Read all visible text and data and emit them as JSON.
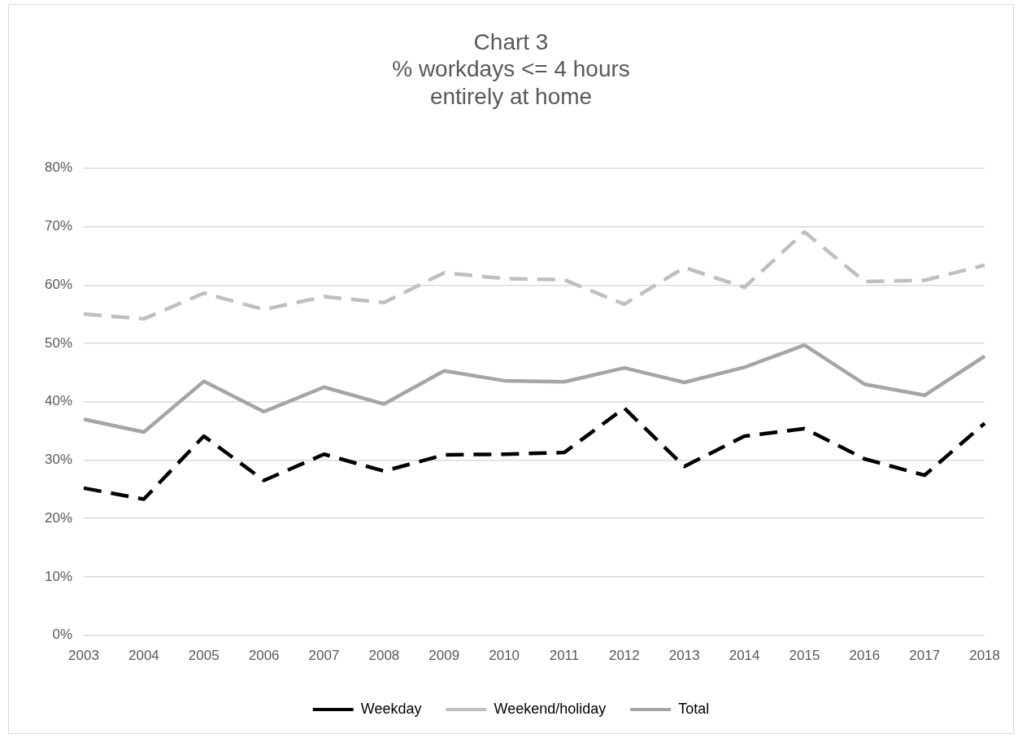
{
  "chart_data": {
    "type": "line",
    "title": "Chart 3\n% workdays <= 4 hours\nentirely at home",
    "categories": [
      "2003",
      "2004",
      "2005",
      "2006",
      "2007",
      "2008",
      "2009",
      "2010",
      "2011",
      "2012",
      "2013",
      "2014",
      "2015",
      "2016",
      "2017",
      "2018"
    ],
    "series": [
      {
        "name": "Weekday",
        "color": "#000000",
        "line_style": "dashed",
        "values": [
          25.2,
          23.3,
          34.1,
          26.5,
          31.0,
          28.1,
          30.9,
          31.0,
          31.3,
          38.9,
          28.9,
          34.1,
          35.4,
          30.2,
          27.4,
          36.3
        ]
      },
      {
        "name": "Weekend/holiday",
        "color": "#bfbfbf",
        "line_style": "dashed",
        "values": [
          55.0,
          54.2,
          58.6,
          55.8,
          58.0,
          57.0,
          62.1,
          61.1,
          60.9,
          56.7,
          63.0,
          59.6,
          69.1,
          60.6,
          60.8,
          63.4
        ]
      },
      {
        "name": "Total",
        "color": "#a5a5a5",
        "line_style": "solid",
        "values": [
          37.0,
          34.8,
          43.5,
          38.3,
          42.5,
          39.6,
          45.3,
          43.6,
          43.4,
          45.8,
          43.3,
          45.9,
          49.7,
          43.0,
          41.1,
          47.8
        ]
      }
    ],
    "ylim": [
      0,
      80
    ],
    "yticks": [
      {
        "value": 0,
        "label": "0%"
      },
      {
        "value": 10,
        "label": "10%"
      },
      {
        "value": 20,
        "label": "20%"
      },
      {
        "value": 30,
        "label": "30%"
      },
      {
        "value": 40,
        "label": "40%"
      },
      {
        "value": 50,
        "label": "50%"
      },
      {
        "value": 60,
        "label": "60%"
      },
      {
        "value": 70,
        "label": "70%"
      },
      {
        "value": 80,
        "label": "80%"
      }
    ],
    "grid": "y",
    "legend": "bottom",
    "marker": "none"
  }
}
